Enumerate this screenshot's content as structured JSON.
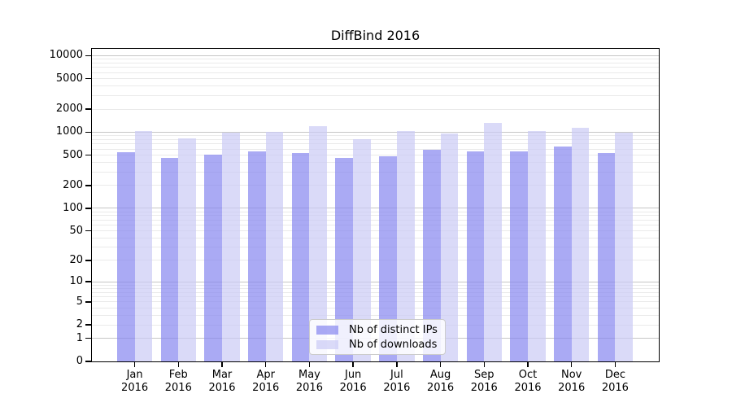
{
  "chart_data": {
    "type": "bar",
    "title": "DiffBind 2016",
    "months": [
      "Jan",
      "Feb",
      "Mar",
      "Apr",
      "May",
      "Jun",
      "Jul",
      "Aug",
      "Sep",
      "Oct",
      "Nov",
      "Dec"
    ],
    "year": "2016",
    "series": [
      {
        "name": "Nb of distinct IPs",
        "values": [
          547,
          461,
          508,
          561,
          530,
          461,
          484,
          589,
          561,
          561,
          649,
          533
        ],
        "color": "#8686ef"
      },
      {
        "name": "Nb of downloads",
        "values": [
          1033,
          829,
          984,
          1008,
          1197,
          812,
          1033,
          960,
          1330,
          1026,
          1147,
          985
        ],
        "color": "#cacaf5"
      }
    ],
    "bar_opacity": 0.7,
    "yscale": "log1p",
    "ylim": [
      0,
      12300
    ],
    "yticks": [
      0,
      1,
      2,
      5,
      10,
      20,
      50,
      100,
      200,
      500,
      1000,
      2000,
      5000,
      10000
    ],
    "grid": {
      "major_color": "#c6c6c6",
      "minor_color": "#eaeaea",
      "major_at": [
        1,
        10,
        100,
        1000,
        10000
      ]
    },
    "legend_position": "lower center",
    "axis_color": "#000000",
    "background_color": "#ffffff"
  }
}
